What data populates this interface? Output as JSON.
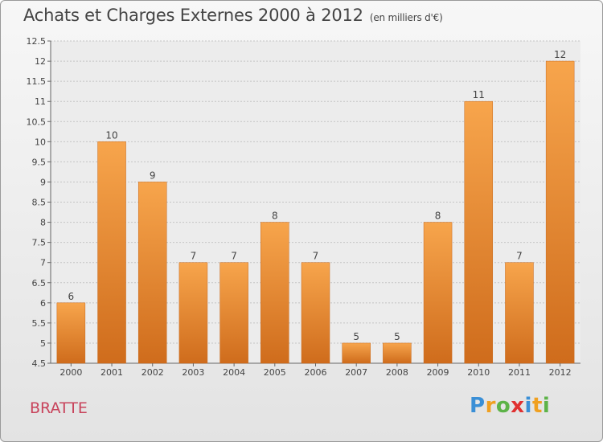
{
  "header": {
    "title": "Achats et Charges Externes 2000 à 2012",
    "unit": "(en milliers d'€)"
  },
  "footer": {
    "location": "BRATTE",
    "logo": {
      "text": "Proxiti",
      "letters": [
        {
          "ch": "P",
          "color": "#3a8fd6"
        },
        {
          "ch": "r",
          "color": "#f0a020"
        },
        {
          "ch": "o",
          "color": "#5db348"
        },
        {
          "ch": "x",
          "color": "#e03030"
        },
        {
          "ch": "i",
          "color": "#3a8fd6"
        },
        {
          "ch": "t",
          "color": "#f0a020"
        },
        {
          "ch": "i",
          "color": "#5db348"
        }
      ]
    }
  },
  "chart_data": {
    "type": "bar",
    "categories": [
      "2000",
      "2001",
      "2002",
      "2003",
      "2004",
      "2005",
      "2006",
      "2007",
      "2008",
      "2009",
      "2010",
      "2011",
      "2012"
    ],
    "values": [
      6,
      10,
      9,
      7,
      7,
      8,
      7,
      5,
      5,
      8,
      11,
      7,
      12
    ],
    "ylim": [
      4.5,
      12.5
    ],
    "yticks": [
      4.5,
      5,
      5.5,
      6,
      6.5,
      7,
      7.5,
      8,
      8.5,
      9,
      9.5,
      10,
      10.5,
      11,
      11.5,
      12,
      12.5
    ],
    "ytick_labels": [
      "4.5",
      "5",
      "5.5",
      "6",
      "6.5",
      "7",
      "7.5",
      "8",
      "8.5",
      "9",
      "9.5",
      "10",
      "10.5",
      "11",
      "11.5",
      "12",
      "12.5"
    ],
    "grid": true,
    "bar_color": "#f0922e",
    "title": "Achats et Charges Externes 2000 à 2012",
    "xlabel": "",
    "ylabel": ""
  }
}
